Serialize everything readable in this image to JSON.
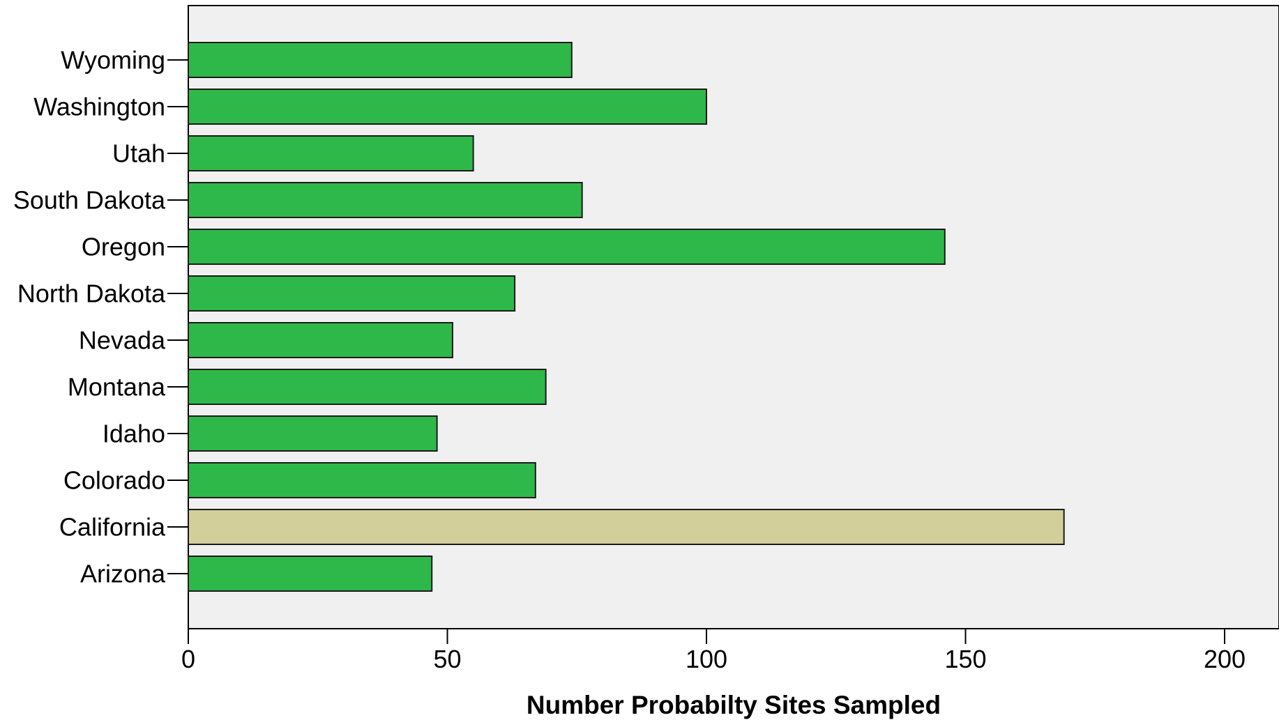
{
  "chart_data": {
    "type": "bar",
    "orientation": "horizontal",
    "categories": [
      "Wyoming",
      "Washington",
      "Utah",
      "South Dakota",
      "Oregon",
      "North Dakota",
      "Nevada",
      "Montana",
      "Idaho",
      "Colorado",
      "California",
      "Arizona"
    ],
    "values": [
      74,
      100,
      55,
      76,
      146,
      63,
      51,
      69,
      48,
      67,
      169,
      47
    ],
    "highlight_category": "California",
    "xlabel": "Number Probabilty Sites Sampled",
    "ylabel": "",
    "xlim": [
      0,
      210
    ],
    "xticks": [
      0,
      50,
      100,
      150,
      200
    ],
    "grid": false,
    "legend": "none",
    "colors": {
      "bar": "#2fb84a",
      "highlight_bar": "#d3cf9a",
      "bar_stroke": "#1a1a1a",
      "plot_background": "#f0f0f0",
      "axis": "#000000"
    }
  }
}
